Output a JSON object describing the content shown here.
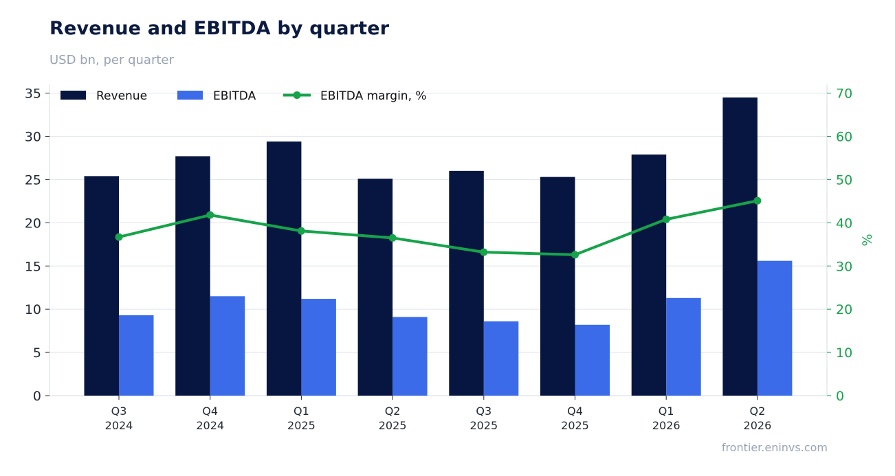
{
  "title": "Revenue and EBITDA by quarter",
  "subtitle": "USD bn, per quarter",
  "source": "frontier.eninvs.com",
  "chart_data": {
    "type": "bar",
    "categories": [
      [
        "Q3",
        "2024"
      ],
      [
        "Q4",
        "2024"
      ],
      [
        "Q1",
        "2025"
      ],
      [
        "Q2",
        "2025"
      ],
      [
        "Q3",
        "2025"
      ],
      [
        "Q4",
        "2025"
      ],
      [
        "Q1",
        "2026"
      ],
      [
        "Q2",
        "2026"
      ]
    ],
    "series": [
      {
        "name": "Revenue",
        "type": "bar",
        "color": "#061640",
        "axis": "left",
        "values": [
          25.4,
          27.7,
          29.4,
          25.1,
          26.0,
          25.3,
          27.9,
          34.5
        ]
      },
      {
        "name": "EBITDA",
        "type": "bar",
        "color": "#3b6be8",
        "axis": "left",
        "values": [
          9.3,
          11.5,
          11.2,
          9.1,
          8.6,
          8.2,
          11.3,
          15.6
        ]
      },
      {
        "name": "EBITDA margin, %",
        "type": "line",
        "color": "#16a34a",
        "axis": "right",
        "values": [
          36.7,
          41.8,
          38.1,
          36.5,
          33.2,
          32.6,
          40.8,
          45.1
        ]
      }
    ],
    "y_left": {
      "min": 0,
      "max": 36,
      "ticks": [
        0,
        5,
        10,
        15,
        20,
        25,
        30,
        35
      ]
    },
    "y_right": {
      "min": 0,
      "max": 72,
      "ticks": [
        0,
        10,
        20,
        30,
        40,
        50,
        60,
        70
      ],
      "label": "%"
    },
    "grid": true,
    "legend": "top-left"
  }
}
